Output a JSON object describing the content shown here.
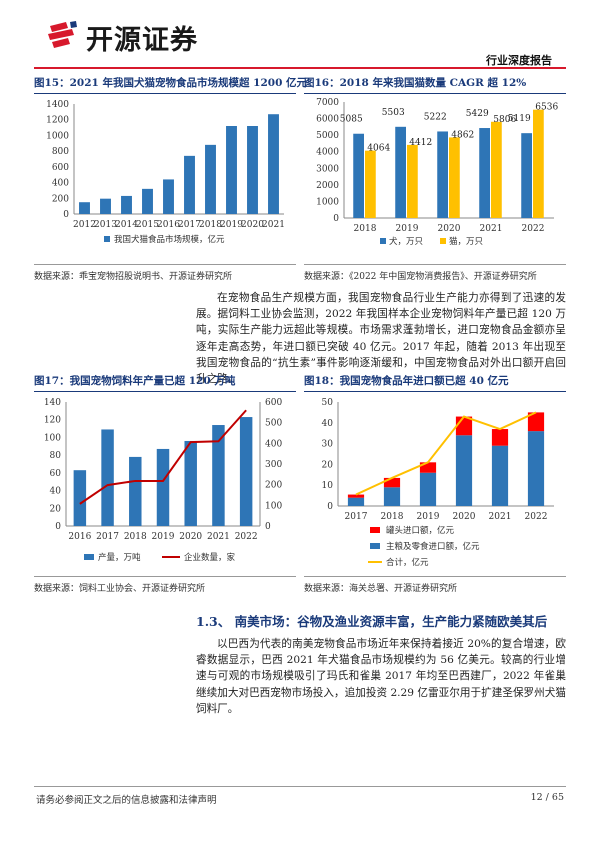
{
  "header": {
    "company_name": "开源证券",
    "report_type": "行业深度报告",
    "accent_color": "#d7192c"
  },
  "fig15": {
    "title": "图15：2021 年我国犬猫宠物食品市场规模超 1200 亿元",
    "source": "数据来源：乖宝宠物招股说明书、开源证券研究所"
  },
  "fig16": {
    "title": "图16：2018 年来我国猫数量 CAGR 超 12%",
    "source": "数据来源：《2022 年中国宠物消费报告》、开源证券研究所"
  },
  "fig17": {
    "title": "图17：我国宠物饲料年产量已超 120 万吨",
    "source": "数据来源：饲料工业协会、开源证券研究所"
  },
  "fig18": {
    "title": "图18：我国宠物食品年进口额已超 40 亿元",
    "source": "数据来源：海关总署、开源证券研究所"
  },
  "body": {
    "para1": "在宠物食品生产规模方面，我国宠物食品行业生产能力亦得到了迅速的发展。据饲料工业协会监测，2022 年我国样本企业宠物饲料年产量已超 120 万吨，实际生产能力远超此等规模。市场需求蓬勃增长，进口宠物食品金额亦呈逐年走高态势，年进口额已突破 40 亿元。2017 年起，随着 2013 年出现至我国宠物食品的“抗生素”事件影响逐渐缓和，中国宠物食品对外出口额开启回升之路。",
    "section_heading": "1.3、 南美市场：谷物及渔业资源丰富，生产能力紧随欧美其后",
    "para2": "以巴西为代表的南美宠物食品市场近年来保持着接近 20%的复合增速，欧睿数据显示，巴西 2021 年犬猫食品市场规模约为 56 亿美元。较高的行业增速与可观的市场规模吸引了玛氏和雀巢 2017 年均至巴西建厂，2022 年雀巢继续加大对巴西宠物市场投入，追加投资 2.29 亿雷亚尔用于扩建圣保罗州犬猫饲料厂。"
  },
  "footer": {
    "disclaimer": "请务必参阅正文之后的信息披露和法律声明",
    "page": "12 / 65"
  },
  "chart_data": [
    {
      "id": "fig15",
      "type": "bar",
      "categories": [
        "2012",
        "2013",
        "2014",
        "2015",
        "2016",
        "2017",
        "2018",
        "2019",
        "2020",
        "2021"
      ],
      "series": [
        {
          "name": "我国犬猫食品市场规模，亿元",
          "values": [
            150,
            195,
            230,
            320,
            440,
            740,
            880,
            1120,
            1120,
            1270
          ],
          "color": "#2e75b6"
        }
      ],
      "ylim": [
        0,
        1400
      ],
      "yticks": [
        0,
        200,
        400,
        600,
        800,
        1000,
        1200,
        1400
      ],
      "legend": "bottom",
      "grid": false
    },
    {
      "id": "fig16",
      "type": "bar",
      "categories": [
        "2018",
        "2019",
        "2020",
        "2021",
        "2022"
      ],
      "series": [
        {
          "name": "犬，万只",
          "values": [
            5085,
            5503,
            5222,
            5429,
            5119
          ],
          "color": "#2e75b6"
        },
        {
          "name": "猫，万只",
          "values": [
            4064,
            4412,
            4862,
            5806,
            6536
          ],
          "color": "#ffc000"
        }
      ],
      "ylim": [
        0,
        7000
      ],
      "yticks": [
        0,
        1000,
        2000,
        3000,
        4000,
        5000,
        6000,
        7000
      ],
      "legend": "bottom",
      "data_labels": true
    },
    {
      "id": "fig17",
      "type": "bar",
      "categories": [
        "2016",
        "2017",
        "2018",
        "2019",
        "2020",
        "2021",
        "2022"
      ],
      "series": [
        {
          "name": "产量，万吨",
          "values": [
            63,
            109,
            78,
            87,
            96,
            114,
            123
          ],
          "color": "#2e75b6",
          "axis": "left"
        },
        {
          "name": "企业数量，家",
          "values": [
            107,
            198,
            218,
            218,
            406,
            410,
            560
          ],
          "color": "#c00000",
          "type": "line",
          "axis": "right"
        }
      ],
      "ylim_left": [
        0,
        140
      ],
      "yticks_left": [
        0,
        20,
        40,
        60,
        80,
        100,
        120,
        140
      ],
      "ylim_right": [
        0,
        600
      ],
      "yticks_right": [
        0,
        100,
        200,
        300,
        400,
        500,
        600
      ],
      "legend": "bottom"
    },
    {
      "id": "fig18",
      "type": "bar",
      "categories": [
        "2017",
        "2018",
        "2019",
        "2020",
        "2021",
        "2022"
      ],
      "series": [
        {
          "name": "主粮及零食进口额，亿元",
          "values": [
            4,
            9,
            16,
            34,
            29,
            36
          ],
          "color": "#2e75b6",
          "stack": "a"
        },
        {
          "name": "罐头进口额，亿元",
          "values": [
            1.5,
            4.5,
            5,
            9,
            8,
            9
          ],
          "color": "#ff0000",
          "stack": "a"
        },
        {
          "name": "合计，亿元",
          "values": [
            5.5,
            13.5,
            21,
            43,
            37,
            45
          ],
          "color": "#ffc000",
          "type": "line"
        }
      ],
      "ylim": [
        0,
        50
      ],
      "yticks": [
        0,
        10,
        20,
        30,
        40,
        50
      ],
      "legend": "bottom"
    }
  ]
}
